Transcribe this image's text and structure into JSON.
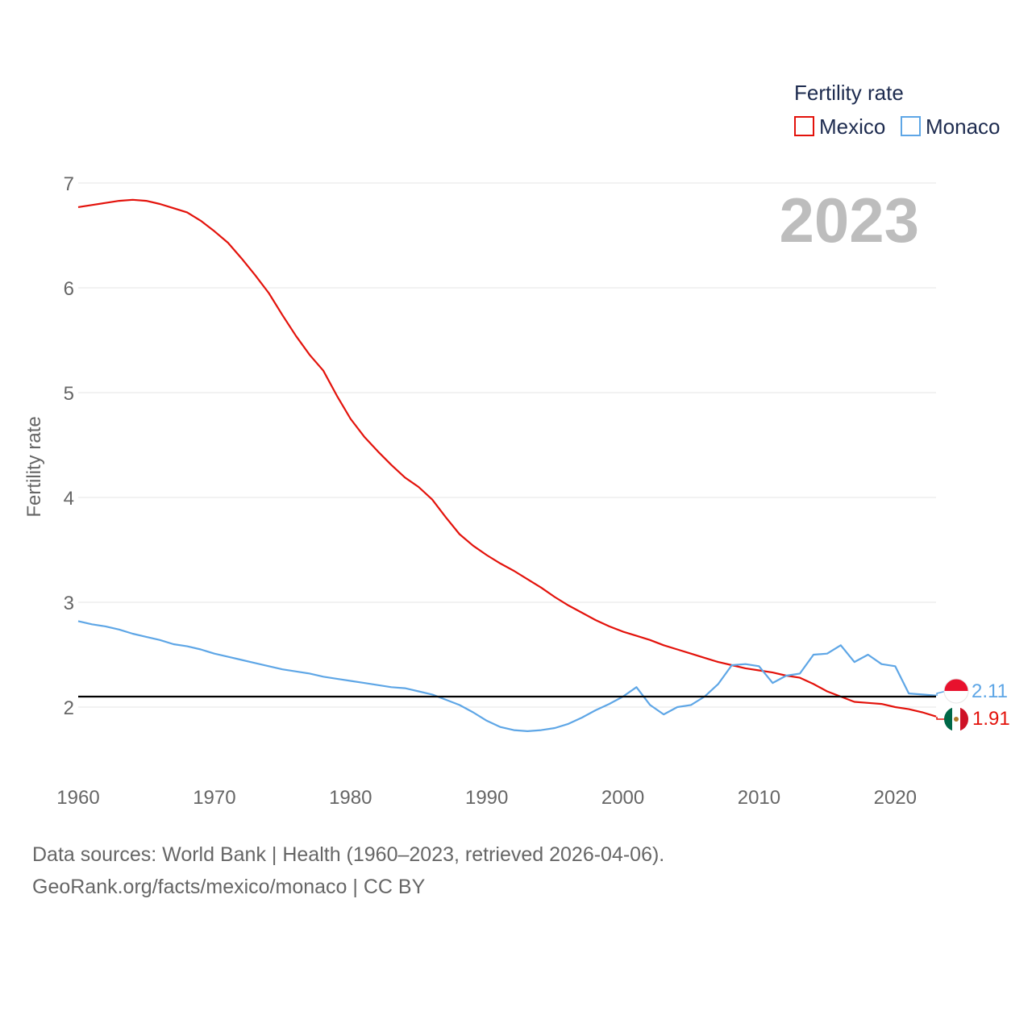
{
  "chart_data": {
    "type": "line",
    "ylabel": "Fertility rate",
    "xlabel": "",
    "xlim": [
      1960,
      2023
    ],
    "ylim": [
      1.42,
      7.2
    ],
    "xticks": [
      1960,
      1970,
      1980,
      1990,
      2000,
      2010,
      2020
    ],
    "yticks": [
      2,
      3,
      4,
      5,
      6,
      7
    ],
    "grid": true,
    "legend": {
      "title": "Fertility rate",
      "position": "top-right"
    },
    "year_label": "2023",
    "reference_line": 2.1,
    "x": [
      1960,
      1961,
      1962,
      1963,
      1964,
      1965,
      1966,
      1967,
      1968,
      1969,
      1970,
      1971,
      1972,
      1973,
      1974,
      1975,
      1976,
      1977,
      1978,
      1979,
      1980,
      1981,
      1982,
      1983,
      1984,
      1985,
      1986,
      1987,
      1988,
      1989,
      1990,
      1991,
      1992,
      1993,
      1994,
      1995,
      1996,
      1997,
      1998,
      1999,
      2000,
      2001,
      2002,
      2003,
      2004,
      2005,
      2006,
      2007,
      2008,
      2009,
      2010,
      2011,
      2012,
      2013,
      2014,
      2015,
      2016,
      2017,
      2018,
      2019,
      2020,
      2021,
      2022,
      2023
    ],
    "series": [
      {
        "name": "Mexico",
        "color": "#e3120b",
        "end_label": "1.91",
        "values": [
          6.77,
          6.79,
          6.81,
          6.83,
          6.84,
          6.83,
          6.8,
          6.76,
          6.72,
          6.64,
          6.54,
          6.43,
          6.28,
          6.12,
          5.95,
          5.74,
          5.54,
          5.36,
          5.21,
          4.97,
          4.75,
          4.58,
          4.44,
          4.31,
          4.19,
          4.1,
          3.98,
          3.81,
          3.65,
          3.54,
          3.45,
          3.37,
          3.3,
          3.22,
          3.14,
          3.05,
          2.97,
          2.9,
          2.83,
          2.77,
          2.72,
          2.68,
          2.64,
          2.59,
          2.55,
          2.51,
          2.47,
          2.43,
          2.4,
          2.37,
          2.35,
          2.33,
          2.3,
          2.28,
          2.22,
          2.15,
          2.1,
          2.05,
          2.04,
          2.03,
          2.0,
          1.98,
          1.95,
          1.91
        ]
      },
      {
        "name": "Monaco",
        "color": "#5ea6e6",
        "end_label": "2.11",
        "values": [
          2.82,
          2.79,
          2.77,
          2.74,
          2.7,
          2.67,
          2.64,
          2.6,
          2.58,
          2.55,
          2.51,
          2.48,
          2.45,
          2.42,
          2.39,
          2.36,
          2.34,
          2.32,
          2.29,
          2.27,
          2.25,
          2.23,
          2.21,
          2.19,
          2.18,
          2.15,
          2.12,
          2.07,
          2.02,
          1.95,
          1.87,
          1.81,
          1.78,
          1.77,
          1.78,
          1.8,
          1.84,
          1.9,
          1.97,
          2.03,
          2.1,
          2.19,
          2.02,
          1.93,
          2.0,
          2.02,
          2.1,
          2.22,
          2.4,
          2.41,
          2.39,
          2.23,
          2.3,
          2.32,
          2.5,
          2.51,
          2.59,
          2.43,
          2.5,
          2.41,
          2.39,
          2.13,
          2.12,
          2.11
        ]
      }
    ]
  },
  "footer": {
    "line1": "Data sources: World Bank | Health (1960–2023, retrieved 2026-04-06).",
    "line2": "GeoRank.org/facts/mexico/monaco | CC BY"
  }
}
